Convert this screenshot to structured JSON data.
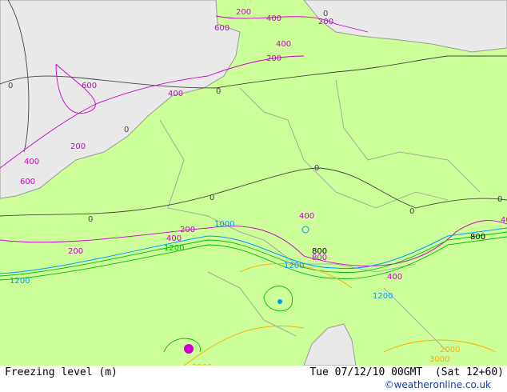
{
  "map": {
    "colors": {
      "land": "#ccff99",
      "sea": "#e9e9e9",
      "border": "#9a9a9a",
      "contour_0": "#444444",
      "contour_low": "#cc00cc",
      "contour_mid": "#00bb00",
      "contour_blue": "#0099ff",
      "contour_high": "#ffaa00"
    },
    "contour_labels": [
      "200",
      "400",
      "600",
      "200",
      "400",
      "600",
      "400",
      "200",
      "0",
      "0",
      "0",
      "0",
      "0",
      "0",
      "0",
      "200",
      "400",
      "600",
      "800",
      "200",
      "400",
      "1000",
      "1200",
      "1200",
      "200",
      "400",
      "800",
      "1200",
      "1200",
      "400",
      "800",
      "2000",
      "3000",
      "2000",
      "0",
      "400",
      "0"
    ]
  },
  "footer": {
    "title": "Freezing level (m)",
    "time": "Tue 07/12/10 00GMT  (Sat 12+60)",
    "copyright": "©weatheronline.co.uk"
  }
}
